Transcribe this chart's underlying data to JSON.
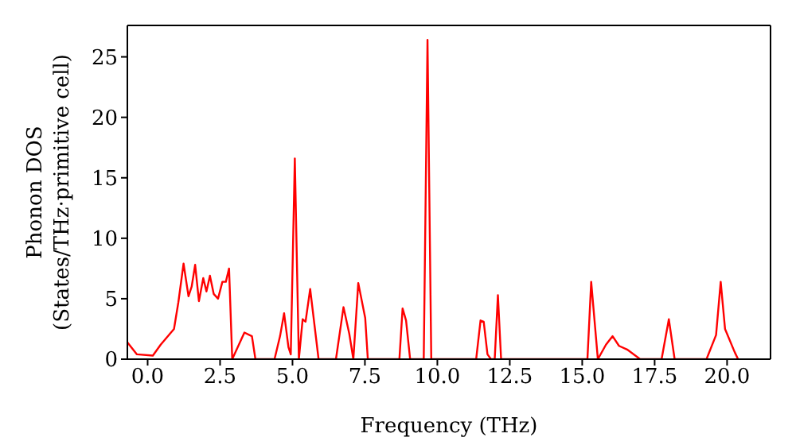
{
  "chart_data": {
    "type": "line",
    "xlabel": "Frequency (THz)",
    "ylabel": "Phonon DOS\n(States/THz·primitive cell)",
    "xlim": [
      -0.7,
      21.5
    ],
    "ylim": [
      0,
      27.6
    ],
    "xticks": [
      {
        "value": 0,
        "label": "0.0"
      },
      {
        "value": 2.5,
        "label": "2.5"
      },
      {
        "value": 5,
        "label": "5.0"
      },
      {
        "value": 7.5,
        "label": "7.5"
      },
      {
        "value": 10,
        "label": "10.0"
      },
      {
        "value": 12.5,
        "label": "12.5"
      },
      {
        "value": 15,
        "label": "15.0"
      },
      {
        "value": 17.5,
        "label": "17.5"
      },
      {
        "value": 20,
        "label": "20.0"
      }
    ],
    "yticks": [
      0,
      5,
      10,
      15,
      20,
      25
    ],
    "grid": false,
    "marker": "none",
    "line_style": "solid",
    "series": [
      {
        "color": "#ff0000",
        "x": [
          -0.7,
          -0.37,
          0.18,
          0.45,
          0.91,
          1.06,
          1.24,
          1.41,
          1.52,
          1.64,
          1.77,
          1.92,
          2.03,
          2.15,
          2.28,
          2.43,
          2.58,
          2.7,
          2.81,
          2.92,
          3.34,
          3.6,
          3.72,
          4.38,
          4.57,
          4.71,
          4.86,
          4.94,
          5.08,
          5.22,
          5.35,
          5.45,
          5.61,
          5.9,
          6.5,
          6.76,
          6.96,
          7.1,
          7.27,
          7.51,
          7.6,
          8.69,
          8.8,
          8.92,
          9.06,
          9.53,
          9.66,
          9.79,
          11.34,
          11.49,
          11.6,
          11.73,
          11.85,
          11.98,
          12.09,
          12.2,
          15.18,
          15.31,
          15.54,
          15.82,
          16.05,
          16.27,
          16.55,
          17.0,
          17.74,
          17.99,
          18.19,
          19.29,
          19.62,
          19.78,
          19.93,
          20.26,
          20.38
        ],
        "values": [
          1.4,
          0.4,
          0.3,
          1.2,
          2.5,
          4.7,
          7.9,
          5.2,
          6.0,
          7.8,
          4.8,
          6.7,
          5.6,
          6.9,
          5.4,
          5.0,
          6.4,
          6.4,
          7.5,
          0,
          2.2,
          1.9,
          0,
          0,
          1.9,
          3.8,
          1.0,
          0.4,
          16.6,
          0,
          3.3,
          3.1,
          5.8,
          0,
          0,
          4.3,
          2.1,
          0,
          6.3,
          3.4,
          0,
          0,
          4.2,
          3.2,
          0,
          0,
          26.4,
          0,
          0,
          3.2,
          3.1,
          0.4,
          0,
          0,
          5.3,
          0,
          0,
          6.4,
          0,
          1.2,
          1.9,
          1.1,
          0.8,
          0,
          0,
          3.3,
          0,
          0,
          2.0,
          6.4,
          2.5,
          0.6,
          0
        ]
      }
    ]
  }
}
